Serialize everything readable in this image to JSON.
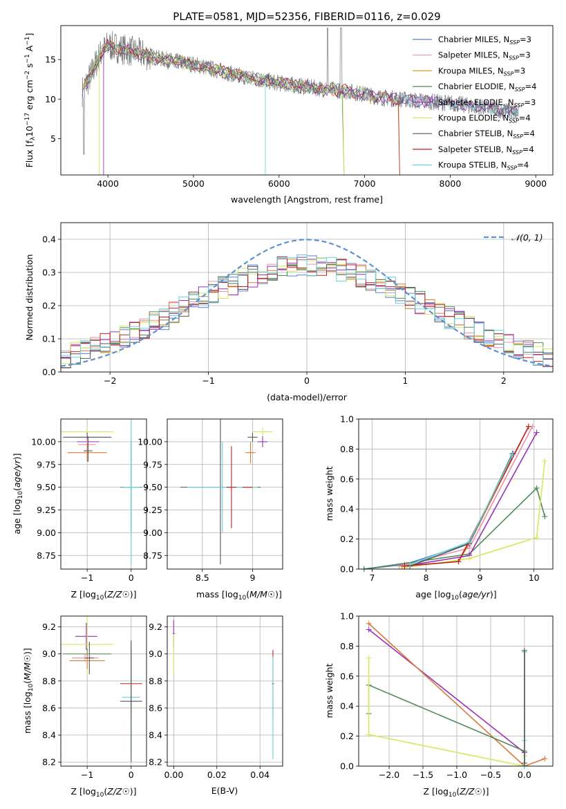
{
  "figure": {
    "title": "PLATE=0581, MJD=52356, FIBERID=0116, z=0.029"
  },
  "colors": {
    "chabrier_miles": "#5b7bd6",
    "salpeter_miles": "#e88fb0",
    "kroupa_miles": "#d9a020",
    "chabrier_elodie": "#4f8a55",
    "salpeter_elodie": "#9b2fb8",
    "kroupa_elodie": "#d4e85a",
    "chabrier_stelib": "#555555",
    "salpeter_stelib": "#c02020",
    "kroupa_stelib": "#66d4d8",
    "normal": "#5b8fd6",
    "orange": "#d87a3a"
  },
  "chart_data": [
    {
      "id": "spectrum",
      "type": "line",
      "title": "PLATE=0581, MJD=52356, FIBERID=0116, z=0.029",
      "xlabel": "wavelength [Angstrom, rest frame]",
      "ylabel_parts": [
        "Flux [f",
        "λ",
        "10",
        "−17",
        " erg cm",
        "−2",
        " s",
        "−1",
        " A",
        "−1",
        "]"
      ],
      "xlim": [
        3450,
        9200
      ],
      "ylim": [
        0.4,
        19.3
      ],
      "xticks": [
        4000,
        5000,
        6000,
        7000,
        8000,
        9000
      ],
      "yticks": [
        5,
        10,
        15
      ],
      "continuum_x": [
        3700,
        3800,
        3900,
        4000,
        4100,
        4300,
        4500,
        4700,
        5000,
        5300,
        5600,
        6000,
        6500,
        6800,
        7200,
        7600,
        8000,
        8400,
        8800
      ],
      "continuum_y": [
        11.0,
        13.0,
        15.5,
        16.8,
        16.5,
        16.0,
        15.4,
        14.9,
        14.4,
        13.6,
        12.8,
        12.0,
        11.3,
        11.0,
        10.2,
        9.8,
        9.5,
        8.9,
        8.3
      ],
      "legend": [
        {
          "name": "Chabrier MILES, N",
          "sub": "SSP",
          "suffix": "=3",
          "color": "#5b7bd6"
        },
        {
          "name": "Salpeter MILES, N",
          "sub": "SSP",
          "suffix": "=3",
          "color": "#e88fb0"
        },
        {
          "name": "Kroupa MILES, N",
          "sub": "SSP",
          "suffix": "=3",
          "color": "#d9a020"
        },
        {
          "name": "Chabrier ELODIE, N",
          "sub": "SSP",
          "suffix": "=4",
          "color": "#4f8a55"
        },
        {
          "name": "Salpeter ELODIE, N",
          "sub": "SSP",
          "suffix": "=3",
          "color": "#9b2fb8"
        },
        {
          "name": "Kroupa ELODIE, N",
          "sub": "SSP",
          "suffix": "=4",
          "color": "#d4e85a"
        },
        {
          "name": "Chabrier STELIB, N",
          "sub": "SSP",
          "suffix": "=4",
          "color": "#555555"
        },
        {
          "name": "Salpeter STELIB, N",
          "sub": "SSP",
          "suffix": "=4",
          "color": "#c02020"
        },
        {
          "name": "Kroupa STELIB, N",
          "sub": "SSP",
          "suffix": "=4",
          "color": "#66d4d8"
        }
      ]
    },
    {
      "id": "residuals",
      "type": "histogram",
      "xlabel": "(data-model)/error",
      "ylabel": "Normed distribution",
      "xlim": [
        -2.5,
        2.5
      ],
      "ylim": [
        0,
        0.45
      ],
      "xticks": [
        -2,
        -1,
        0,
        1,
        2
      ],
      "yticks": [
        0.0,
        0.1,
        0.2,
        0.3,
        0.4
      ],
      "legend": [
        "𝒩(0, 1)"
      ],
      "bin_width": 0.1
    },
    {
      "id": "age_Z",
      "type": "scatter",
      "xlabel": "Z [log10(Z/Z☉)]",
      "ylabel": "age  [log10(age/yr)]",
      "xlim": [
        -1.6,
        0.35
      ],
      "ylim": [
        8.6,
        10.25
      ],
      "xticks": [
        -1,
        0
      ],
      "yticks": [
        8.75,
        9.0,
        9.25,
        9.5,
        9.75,
        10.0
      ]
    },
    {
      "id": "age_mass",
      "type": "scatter",
      "xlabel": "mass [log10(M/M☉)]",
      "ylabel": "",
      "xlim": [
        8.15,
        9.3
      ],
      "ylim": [
        8.6,
        10.25
      ],
      "xticks": [
        8.5,
        9.0
      ],
      "yticks": [
        8.75,
        9.0,
        9.25,
        9.5,
        9.75,
        10.0
      ]
    },
    {
      "id": "weight_age",
      "type": "line",
      "xlabel": "age  [log10(age/yr)]",
      "ylabel": "mass weight",
      "xlim": [
        6.75,
        10.35
      ],
      "ylim": [
        0,
        1.0
      ],
      "xticks": [
        7,
        8,
        9,
        10
      ],
      "yticks": [
        0.0,
        0.2,
        0.4,
        0.6,
        0.8,
        1.0
      ],
      "series": [
        {
          "color": "#5b7bd6",
          "x": [
            6.85,
            7.6,
            8.8,
            9.62
          ],
          "y": [
            0.0,
            0.03,
            0.17,
            0.77
          ]
        },
        {
          "color": "#e88fb0",
          "x": [
            7.5,
            8.8,
            9.97
          ],
          "y": [
            0.02,
            0.14,
            0.95
          ]
        },
        {
          "color": "#d87a3a",
          "x": [
            7.55,
            8.6,
            8.8,
            9.9
          ],
          "y": [
            0.02,
            0.05,
            0.17,
            0.95
          ]
        },
        {
          "color": "#4f8a55",
          "x": [
            6.85,
            8.8,
            10.05,
            10.2
          ],
          "y": [
            0.0,
            0.1,
            0.54,
            0.35
          ]
        },
        {
          "color": "#9b2fb8",
          "x": [
            7.6,
            8.8,
            10.05
          ],
          "y": [
            0.02,
            0.09,
            0.91
          ]
        },
        {
          "color": "#d4e85a",
          "x": [
            7.6,
            8.8,
            10.05,
            10.2
          ],
          "y": [
            0.01,
            0.07,
            0.21,
            0.72
          ]
        },
        {
          "color": "#555555",
          "x": [
            7.7,
            8.8,
            9.6
          ],
          "y": [
            0.02,
            0.17,
            0.77
          ]
        },
        {
          "color": "#c02020",
          "x": [
            7.6,
            8.6,
            9.9
          ],
          "y": [
            0.02,
            0.05,
            0.95
          ]
        },
        {
          "color": "#66d4d8",
          "x": [
            7.7,
            8.8,
            9.6
          ],
          "y": [
            0.03,
            0.18,
            0.76
          ]
        }
      ]
    },
    {
      "id": "mass_Z",
      "type": "scatter",
      "xlabel": "Z [log10(Z/Z☉)]",
      "ylabel": "mass [log10(M/M☉)]",
      "xlim": [
        -1.6,
        0.35
      ],
      "ylim": [
        8.17,
        9.28
      ],
      "xticks": [
        -1,
        0
      ],
      "yticks": [
        8.2,
        8.4,
        8.6,
        8.8,
        9.0,
        9.2
      ]
    },
    {
      "id": "mass_ebv",
      "type": "scatter",
      "xlabel": "E(B-V)",
      "ylabel": "",
      "xlim": [
        -0.003,
        0.0505
      ],
      "ylim": [
        8.17,
        9.28
      ],
      "xticks": [
        0.0,
        0.02,
        0.04
      ],
      "yticks": [
        8.2,
        8.4,
        8.6,
        8.8,
        9.0,
        9.2
      ]
    },
    {
      "id": "weight_Z",
      "type": "line",
      "xlabel": "Z [log10(Z/Z☉)]",
      "ylabel": "mass weight",
      "xlim": [
        -2.45,
        0.42
      ],
      "ylim": [
        0,
        1.0
      ],
      "xticks": [
        -2.0,
        -1.5,
        -1.0,
        -0.5,
        0.0
      ],
      "yticks": [
        0.0,
        0.2,
        0.4,
        0.6,
        0.8,
        1.0
      ],
      "series": [
        {
          "color": "#9b2fb8",
          "x": [
            -2.3,
            0.0,
            0.0
          ],
          "y": [
            0.91,
            0.09,
            0.0
          ]
        },
        {
          "color": "#d87a3a",
          "x": [
            -2.3,
            0.0,
            0.3
          ],
          "y": [
            0.95,
            0.0,
            0.05
          ]
        },
        {
          "color": "#4f8a55",
          "x": [
            -2.3,
            -2.3,
            0.0,
            0.0
          ],
          "y": [
            0.35,
            0.54,
            0.1,
            0.0
          ]
        },
        {
          "color": "#d4e85a",
          "x": [
            -2.3,
            -2.3,
            0.0,
            0.0
          ],
          "y": [
            0.72,
            0.21,
            0.0,
            0.07
          ]
        },
        {
          "color": "#66d4d8",
          "x": [
            0.0,
            0.0,
            0.0
          ],
          "y": [
            0.0,
            0.17,
            0.76
          ]
        },
        {
          "color": "#555555",
          "x": [
            0.0,
            0.0
          ],
          "y": [
            0.02,
            0.77
          ]
        }
      ]
    }
  ]
}
